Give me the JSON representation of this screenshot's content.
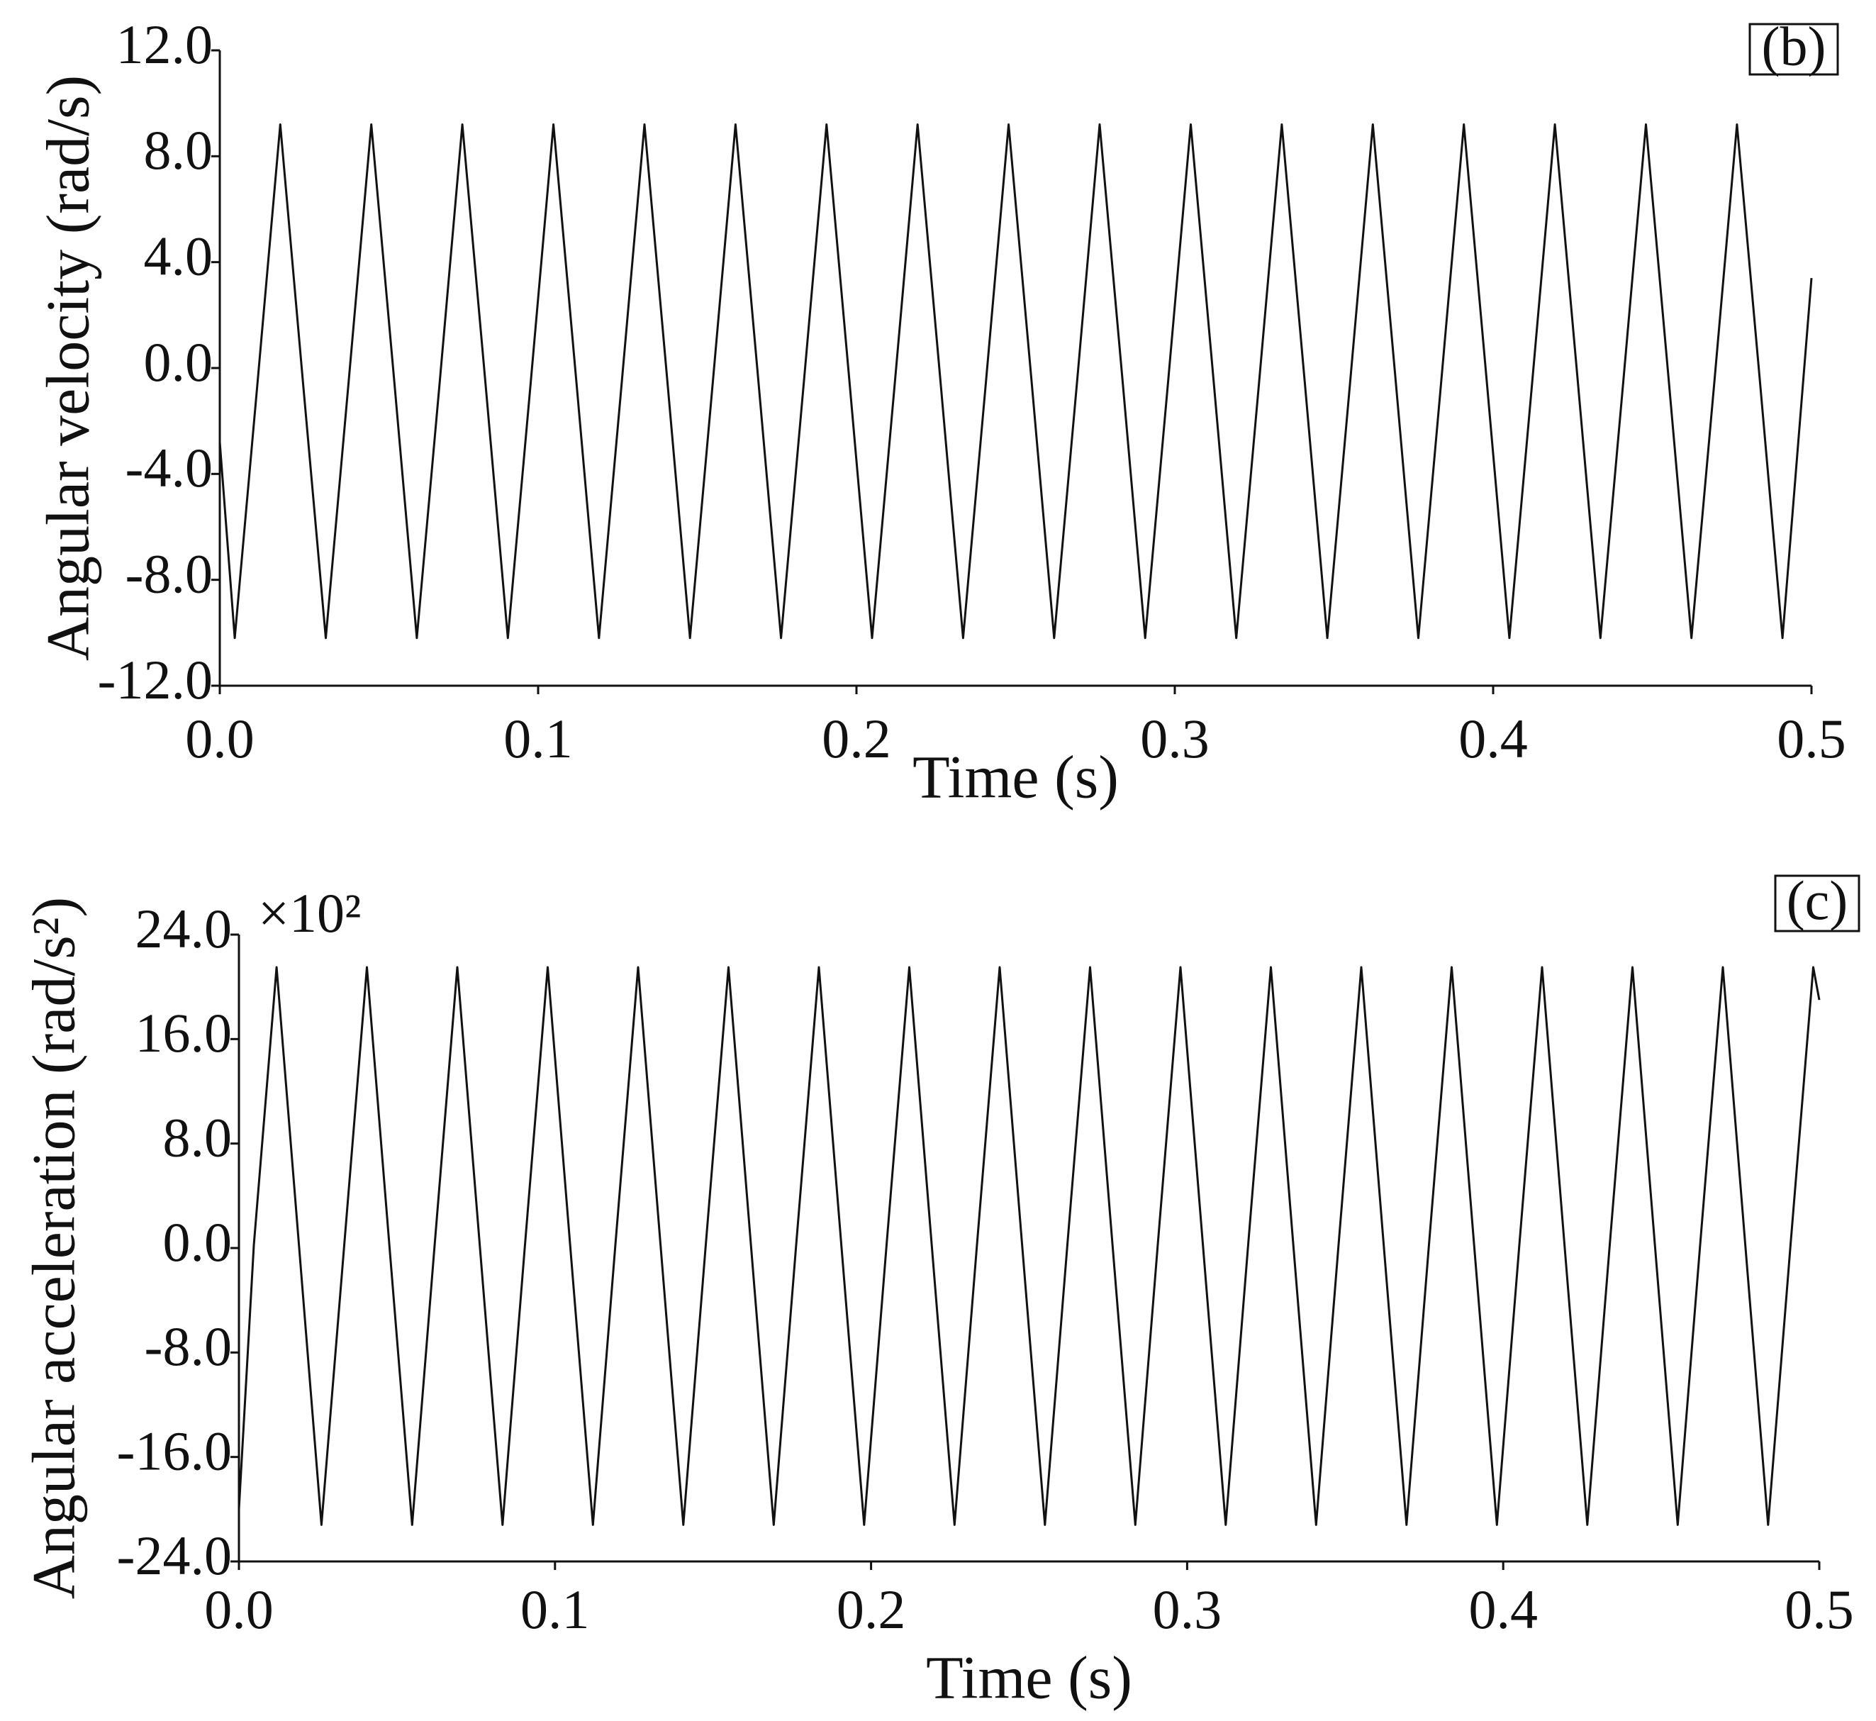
{
  "chart_data": [
    {
      "type": "line",
      "panel_label": "(b)",
      "xlabel": "Time (s)",
      "ylabel": "Angular velocity (rad/s)",
      "xlim": [
        0,
        0.5
      ],
      "ylim": [
        -12,
        12
      ],
      "xticks": [
        {
          "value": 0,
          "label": "0.0"
        },
        0.1,
        0.2,
        0.3,
        0.4,
        0.5
      ],
      "yticks": [
        {
          "value": -12,
          "label": "-12.0"
        },
        {
          "value": -8,
          "label": "-8.0"
        },
        {
          "value": -4,
          "label": "-4.0"
        },
        {
          "value": 0,
          "label": "0.0"
        },
        {
          "value": 4,
          "label": "4.0"
        },
        {
          "value": 8,
          "label": "8.0"
        },
        {
          "value": 12,
          "label": "12.0"
        }
      ],
      "color": "#111111",
      "x": [
        0,
        0.0047,
        0.0119,
        0.019,
        0.0261,
        0.0333,
        0.0405,
        0.0476,
        0.0548,
        0.0619,
        0.0691,
        0.0762,
        0.0834,
        0.0905,
        0.0977,
        0.1048,
        0.112,
        0.1191,
        0.1263,
        0.1334,
        0.1406,
        0.1477,
        0.1549,
        0.162,
        0.1692,
        0.1763,
        0.1835,
        0.1906,
        0.1978,
        0.2049,
        0.2121,
        0.2192,
        0.2264,
        0.2335,
        0.2407,
        0.2478,
        0.255,
        0.2621,
        0.2693,
        0.2764,
        0.2836,
        0.2907,
        0.2979,
        0.305,
        0.3122,
        0.3193,
        0.3265,
        0.3336,
        0.3408,
        0.3479,
        0.3551,
        0.3622,
        0.3694,
        0.3765,
        0.3837,
        0.3908,
        0.398,
        0.4051,
        0.4123,
        0.4194,
        0.4266,
        0.4337,
        0.4409,
        0.448,
        0.4552,
        0.4623,
        0.4695,
        0.4766,
        0.4838,
        0.4909,
        0.5
      ],
      "values": [
        -2.8,
        -10.2,
        -0.5,
        9.2,
        -0.5,
        -10.2,
        -0.5,
        9.2,
        -0.5,
        -10.2,
        -0.5,
        9.2,
        -0.5,
        -10.2,
        -0.5,
        9.2,
        -0.5,
        -10.2,
        -0.5,
        9.2,
        -0.5,
        -10.2,
        -0.5,
        9.2,
        -0.5,
        -10.2,
        -0.5,
        9.2,
        -0.5,
        -10.2,
        -0.5,
        9.2,
        -0.5,
        -10.2,
        -0.5,
        9.2,
        -0.5,
        -10.2,
        -0.5,
        9.2,
        -0.5,
        -10.2,
        -0.5,
        9.2,
        -0.5,
        -10.2,
        -0.5,
        9.2,
        -0.5,
        -10.2,
        -0.5,
        9.2,
        -0.5,
        -10.2,
        -0.5,
        9.2,
        -0.5,
        -10.2,
        -0.5,
        9.2,
        -0.5,
        -10.2,
        -0.5,
        9.2,
        -0.5,
        -10.2,
        -0.5,
        9.2,
        -0.5,
        -10.2,
        3.4
      ]
    },
    {
      "type": "line",
      "panel_label": "(c)",
      "annotation": "×10²",
      "xlabel": "Time (s)",
      "ylabel": "Angular acceleration (rad/s²)",
      "xlim": [
        0,
        0.5
      ],
      "ylim": [
        -24,
        24
      ],
      "xticks": [
        {
          "value": 0,
          "label": "0.0"
        },
        0.1,
        0.2,
        0.3,
        0.4,
        0.5
      ],
      "yticks": [
        {
          "value": -24,
          "label": "-24.0"
        },
        {
          "value": -16,
          "label": "-16.0"
        },
        {
          "value": -8,
          "label": "-8.0"
        },
        {
          "value": 0,
          "label": "0.0"
        },
        {
          "value": 8,
          "label": "8.0"
        },
        {
          "value": 16,
          "label": "16.0"
        },
        {
          "value": 24,
          "label": "24.0"
        }
      ],
      "color": "#111111",
      "x": [
        0,
        0.0047,
        0.0119,
        0.019,
        0.0261,
        0.0333,
        0.0405,
        0.0476,
        0.0548,
        0.0619,
        0.0691,
        0.0762,
        0.0834,
        0.0905,
        0.0977,
        0.1048,
        0.112,
        0.1191,
        0.1263,
        0.1334,
        0.1406,
        0.1477,
        0.1549,
        0.162,
        0.1692,
        0.1763,
        0.1835,
        0.1906,
        0.1978,
        0.2049,
        0.2121,
        0.2192,
        0.2264,
        0.2335,
        0.2407,
        0.2478,
        0.255,
        0.2621,
        0.2693,
        0.2764,
        0.2836,
        0.2907,
        0.2979,
        0.305,
        0.3122,
        0.3193,
        0.3265,
        0.3336,
        0.3408,
        0.3479,
        0.3551,
        0.3622,
        0.3694,
        0.3765,
        0.3837,
        0.3908,
        0.398,
        0.4051,
        0.4123,
        0.4194,
        0.4266,
        0.4337,
        0.4409,
        0.448,
        0.4552,
        0.4623,
        0.4695,
        0.4766,
        0.4838,
        0.4909,
        0.4981,
        0.5
      ],
      "values": [
        -20,
        0.2,
        21.5,
        0.2,
        -21.2,
        0.2,
        21.5,
        0.2,
        -21.2,
        0.2,
        21.5,
        0.2,
        -21.2,
        0.2,
        21.5,
        0.2,
        -21.2,
        0.2,
        21.5,
        0.2,
        -21.2,
        0.2,
        21.5,
        0.2,
        -21.2,
        0.2,
        21.5,
        0.2,
        -21.2,
        0.2,
        21.5,
        0.2,
        -21.2,
        0.2,
        21.5,
        0.2,
        -21.2,
        0.2,
        21.5,
        0.2,
        -21.2,
        0.2,
        21.5,
        0.2,
        -21.2,
        0.2,
        21.5,
        0.2,
        -21.2,
        0.2,
        21.5,
        0.2,
        -21.2,
        0.2,
        21.5,
        0.2,
        -21.2,
        0.2,
        21.5,
        0.2,
        -21.2,
        0.2,
        21.5,
        0.2,
        -21.2,
        0.2,
        21.5,
        0.2,
        -21.2,
        0.2,
        21.5,
        19
      ]
    }
  ]
}
